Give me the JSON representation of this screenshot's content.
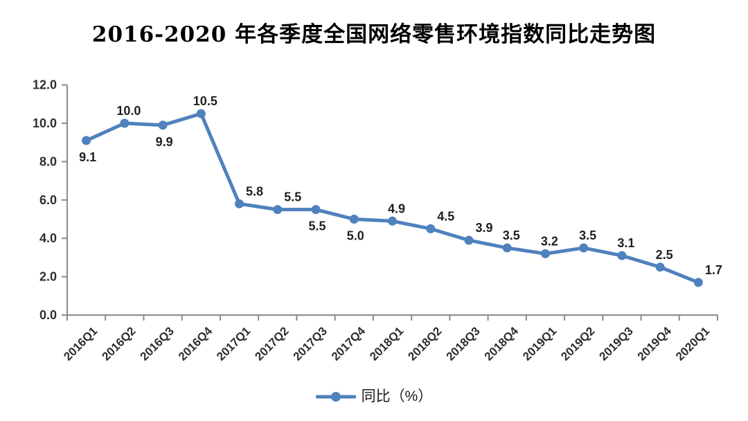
{
  "title": "2016-2020 年各季度全国网络零售环境指数同比走势图",
  "legend": {
    "label": "同比（%）"
  },
  "chart_data": {
    "type": "line",
    "title": "2016-2020 年各季度全国网络零售环境指数同比走势图",
    "categories": [
      "2016Q1",
      "2016Q2",
      "2016Q3",
      "2016Q4",
      "2017Q1",
      "2017Q2",
      "2017Q3",
      "2017Q4",
      "2018Q1",
      "2018Q2",
      "2018Q3",
      "2018Q4",
      "2019Q1",
      "2019Q2",
      "2019Q3",
      "2019Q4",
      "2020Q1"
    ],
    "series": [
      {
        "name": "同比（%）",
        "values": [
          9.1,
          10.0,
          9.9,
          10.5,
          5.8,
          5.5,
          5.5,
          5.0,
          4.9,
          4.5,
          3.9,
          3.5,
          3.2,
          3.5,
          3.1,
          2.5,
          1.7
        ]
      }
    ],
    "label_positions": [
      "below",
      "above",
      "below",
      "above",
      "above-right",
      "above-right",
      "below",
      "below",
      "above",
      "above-right",
      "above-right",
      "above",
      "above",
      "above",
      "above",
      "above",
      "above-right"
    ],
    "ylim": [
      0,
      12
    ],
    "ytick_step": 2,
    "ytick_labels": [
      "0.0",
      "2.0",
      "4.0",
      "6.0",
      "8.0",
      "10.0",
      "12.0"
    ],
    "xlabel": "",
    "ylabel": "",
    "grid": false,
    "legend_position": "bottom",
    "line_color": "#4F81BD",
    "axis_color": "#8a8a8a",
    "label_color": "#1f1f1f"
  }
}
